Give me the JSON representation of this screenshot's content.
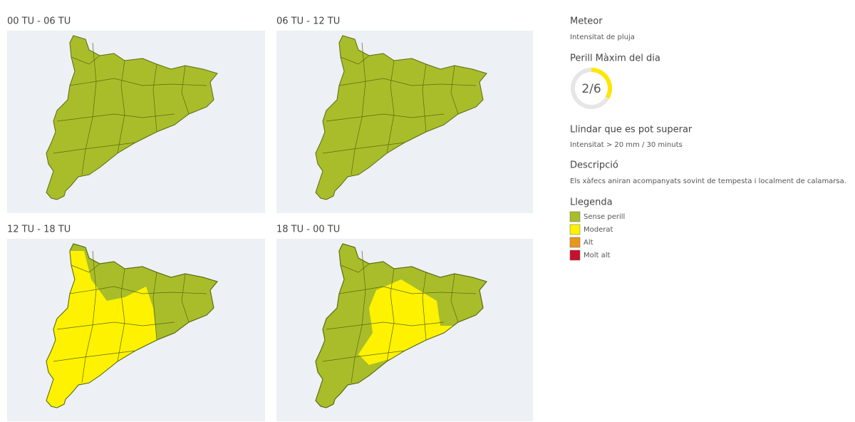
{
  "maps": [
    {
      "title": "00 TU - 06 TU"
    },
    {
      "title": "06 TU - 12 TU"
    },
    {
      "title": "12 TU - 18 TU"
    },
    {
      "title": "18 TU - 00 TU"
    }
  ],
  "sidebar": {
    "meteor_heading": "Meteor",
    "meteor": "Intensitat de pluja",
    "danger_heading": "Perill Màxim del dia",
    "gauge": {
      "value": 2,
      "max": 6,
      "label": "2/6",
      "color": "#ffe600"
    },
    "threshold_heading": "Llindar que es pot superar",
    "threshold": "Intensitat > 20 mm / 30 minuts",
    "description_heading": "Descripció",
    "description": "Els xàfecs aniran acompanyats sovint de tempesta i localment de calamarsa.",
    "legend_heading": "Llegenda",
    "legend": [
      {
        "label": "Sense perill",
        "color": "#a9bd2a"
      },
      {
        "label": "Moderat",
        "color": "#fff200"
      },
      {
        "label": "Alt",
        "color": "#e8961c"
      },
      {
        "label": "Molt alt",
        "color": "#c8102e"
      }
    ]
  }
}
